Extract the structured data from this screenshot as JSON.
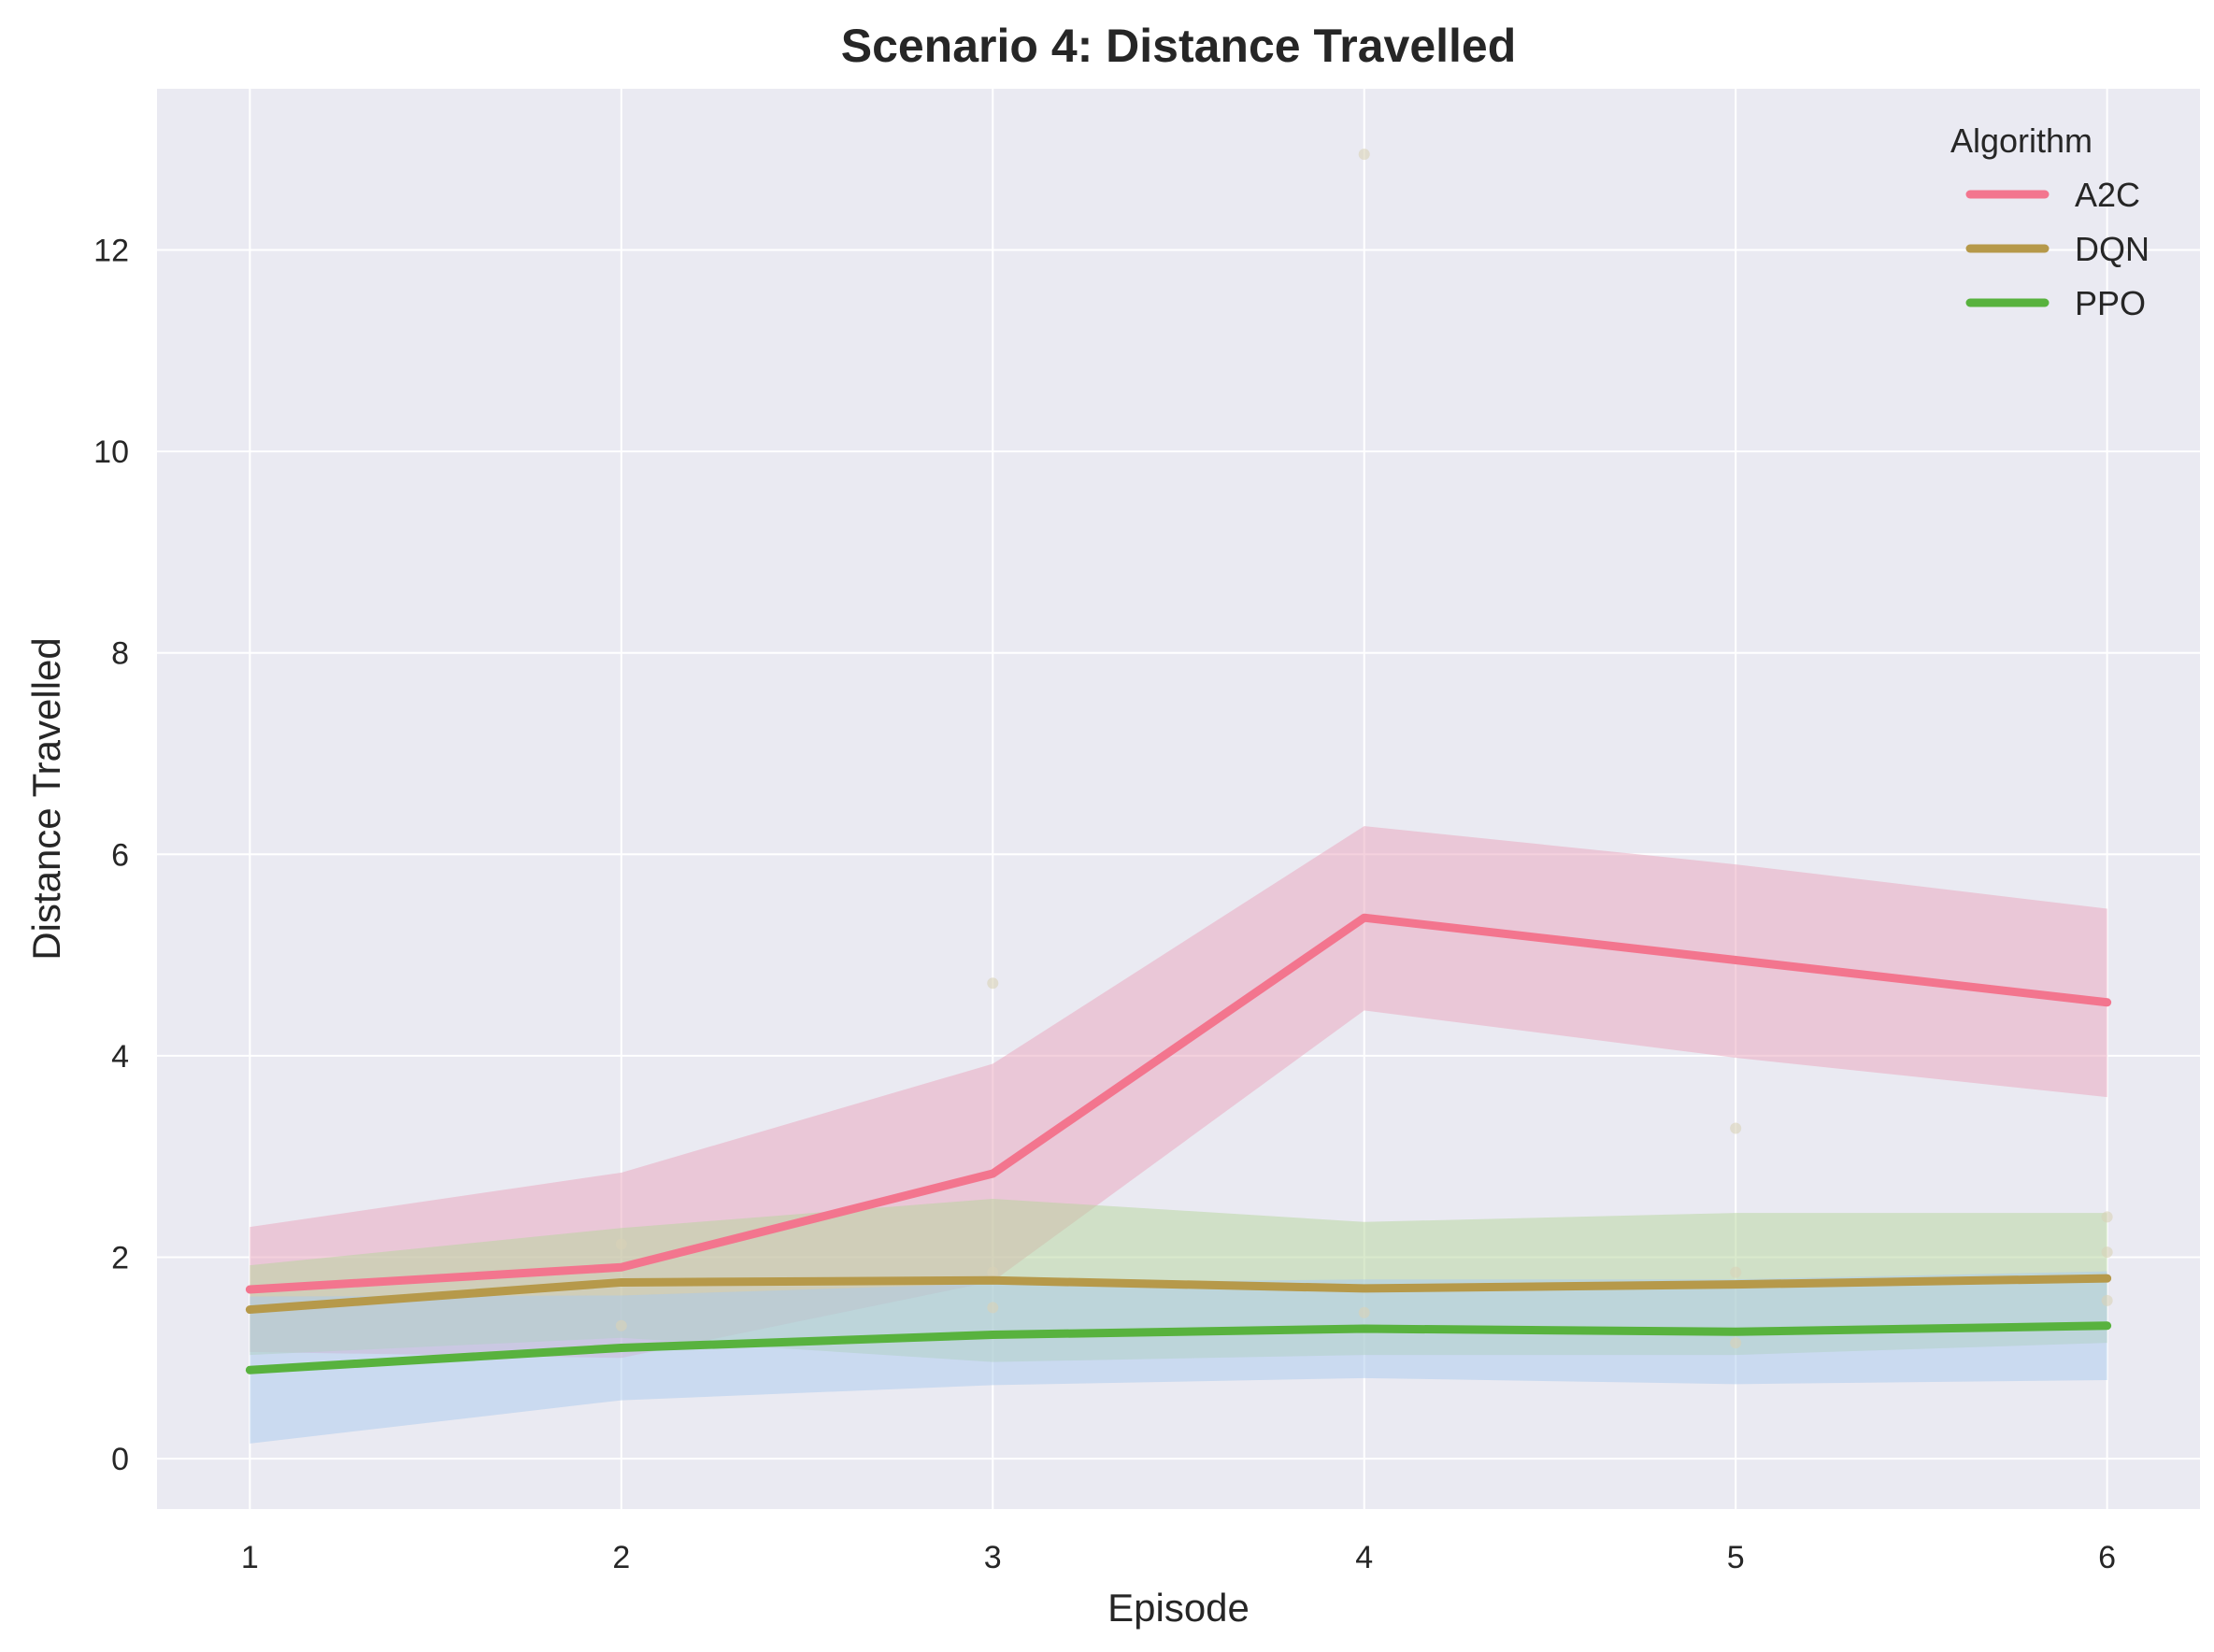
{
  "chart_data": {
    "type": "line",
    "title": "Scenario 4: Distance Travelled",
    "xlabel": "Episode",
    "ylabel": "Distance Travelled",
    "x": [
      1,
      2,
      3,
      4,
      5,
      6
    ],
    "xlim": [
      0.75,
      6.25
    ],
    "ylim": [
      -0.5,
      13.6
    ],
    "xticks": [
      1,
      2,
      3,
      4,
      5,
      6
    ],
    "yticks": [
      0,
      2,
      4,
      6,
      8,
      10,
      12
    ],
    "grid": true,
    "legend": {
      "title": "Algorithm",
      "position": "top-right"
    },
    "series": [
      {
        "name": "A2C",
        "color": "#f3758e",
        "band_color": "#e9a3bc",
        "values": [
          1.68,
          1.9,
          2.83,
          5.37,
          4.95,
          4.53
        ],
        "lower": [
          1.06,
          1.0,
          1.76,
          4.45,
          3.98,
          3.59
        ],
        "upper": [
          2.3,
          2.84,
          3.92,
          6.28,
          5.9,
          5.46
        ]
      },
      {
        "name": "DQN",
        "color": "#b6994a",
        "band_color": "#b5d59b",
        "values": [
          1.48,
          1.75,
          1.77,
          1.69,
          1.73,
          1.79
        ],
        "lower": [
          1.03,
          1.2,
          0.96,
          1.03,
          1.03,
          1.15
        ],
        "upper": [
          1.92,
          2.29,
          2.58,
          2.35,
          2.44,
          2.44
        ]
      },
      {
        "name": "PPO",
        "color": "#58b23e",
        "band_color": "#a9c9ee",
        "values": [
          0.88,
          1.1,
          1.23,
          1.29,
          1.26,
          1.32
        ],
        "lower": [
          0.15,
          0.58,
          0.73,
          0.8,
          0.74,
          0.78
        ],
        "upper": [
          1.61,
          1.62,
          1.74,
          1.78,
          1.78,
          1.86
        ]
      }
    ],
    "scatter_points": [
      {
        "x": 2,
        "y": 2.13
      },
      {
        "x": 2,
        "y": 1.32
      },
      {
        "x": 3,
        "y": 4.72
      },
      {
        "x": 3,
        "y": 1.85
      },
      {
        "x": 3,
        "y": 1.5
      },
      {
        "x": 4,
        "y": 12.95
      },
      {
        "x": 4,
        "y": 1.45
      },
      {
        "x": 5,
        "y": 3.28
      },
      {
        "x": 5,
        "y": 1.85
      },
      {
        "x": 5,
        "y": 1.15
      },
      {
        "x": 6,
        "y": 2.4
      },
      {
        "x": 6,
        "y": 2.05
      },
      {
        "x": 6,
        "y": 1.57
      }
    ]
  }
}
